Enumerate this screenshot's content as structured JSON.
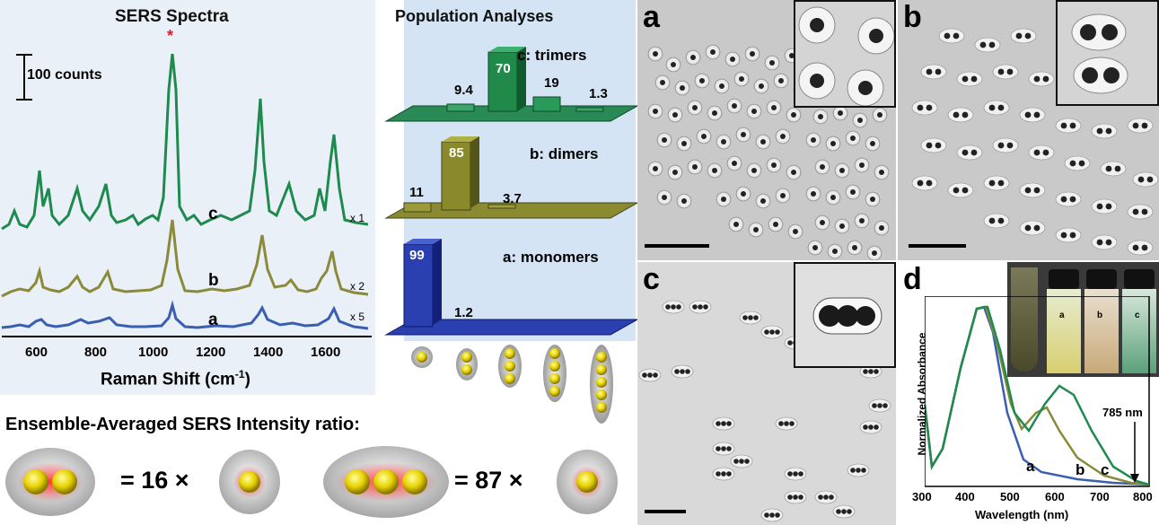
{
  "sers": {
    "title": "SERS Spectra",
    "scale_label": "100 counts",
    "star": "*",
    "xlabel": "Raman Shift (cm",
    "xlabel_sup": "-1",
    "xlabel_end": ")",
    "ticks": [
      "600",
      "800",
      "1000",
      "1200",
      "1400",
      "1600"
    ],
    "labels": {
      "c": "c",
      "b": "b",
      "a": "a"
    },
    "multipliers": {
      "c": "x 1",
      "b": "x 2",
      "a": "x 5"
    },
    "colors": {
      "a": "#3a5fb0",
      "b": "#8a8a3a",
      "c": "#1e8a4e"
    }
  },
  "population": {
    "title": "Population Analyses",
    "rows": [
      {
        "name": "c: trimers",
        "values": [
          "9.4",
          "70",
          "19",
          "1.3"
        ]
      },
      {
        "name": "b: dimers",
        "values": [
          "11",
          "85",
          "3.7"
        ]
      },
      {
        "name": "a: monomers",
        "values": [
          "99",
          "1.2"
        ]
      }
    ],
    "colors": {
      "trimers": "#1e8a4e",
      "dimers": "#8a8a2a",
      "monomers": "#2a3fb0"
    }
  },
  "ratio": {
    "heading": "Ensemble-Averaged SERS Intensity ratio:",
    "dimer_eq": "= 16 ×",
    "trimer_eq": "= 87 ×"
  },
  "tem": {
    "a_label": "a",
    "b_label": "b",
    "c_label": "c",
    "d_label": "d"
  },
  "absorbance": {
    "ylabel": "Normalized Absorbance",
    "xlabel": "Wavelength (nm)",
    "ticks": [
      "300",
      "400",
      "500",
      "600",
      "700",
      "800"
    ],
    "marker": "785 nm",
    "curve_labels": [
      "a",
      "b",
      "c"
    ],
    "vial_labels": [
      "a",
      "b",
      "c"
    ],
    "colors": {
      "a": "#3a5fb0",
      "b": "#8a8a3a",
      "c": "#1e8a4e"
    }
  },
  "chart_data": [
    {
      "type": "bar",
      "title": "Population Analyses",
      "categories": [
        "monomer",
        "dimer",
        "trimer",
        "tetramer",
        "pentamer"
      ],
      "series": [
        {
          "name": "c: trimers",
          "values": [
            0,
            9.4,
            70,
            19,
            1.3
          ]
        },
        {
          "name": "b: dimers",
          "values": [
            11,
            85,
            3.7,
            0,
            0
          ]
        },
        {
          "name": "a: monomers",
          "values": [
            99,
            1.2,
            0,
            0,
            0
          ]
        }
      ]
    },
    {
      "type": "line",
      "title": "SERS Spectra",
      "xlabel": "Raman Shift (cm-1)",
      "xlim": [
        480,
        1750
      ],
      "series": [
        {
          "name": "c",
          "peaks_x": [
            600,
            640,
            770,
            840,
            1065,
            1380,
            1450,
            1580,
            1620
          ]
        },
        {
          "name": "b",
          "peaks_x": [
            600,
            770,
            840,
            1065,
            1380,
            1620
          ]
        },
        {
          "name": "a",
          "peaks_x": [
            600,
            770,
            840,
            1065,
            1380,
            1620
          ]
        }
      ]
    },
    {
      "type": "line",
      "xlabel": "Wavelength (nm)",
      "ylabel": "Normalized Absorbance",
      "xlim": [
        300,
        800
      ],
      "series": [
        {
          "name": "a",
          "x": [
            300,
            330,
            400,
            430,
            460,
            520,
            600,
            700,
            800
          ],
          "y": [
            0.55,
            0.1,
            0.85,
            1.0,
            0.75,
            0.15,
            0.05,
            0.03,
            0.02
          ]
        },
        {
          "name": "b",
          "x": [
            300,
            330,
            400,
            435,
            470,
            520,
            570,
            620,
            700,
            800
          ],
          "y": [
            0.55,
            0.1,
            0.85,
            1.0,
            0.7,
            0.3,
            0.45,
            0.3,
            0.1,
            0.02
          ]
        },
        {
          "name": "c",
          "x": [
            300,
            330,
            400,
            440,
            480,
            530,
            610,
            680,
            750,
            800
          ],
          "y": [
            0.55,
            0.1,
            0.85,
            1.0,
            0.6,
            0.33,
            0.55,
            0.35,
            0.1,
            0.02
          ]
        }
      ]
    }
  ]
}
